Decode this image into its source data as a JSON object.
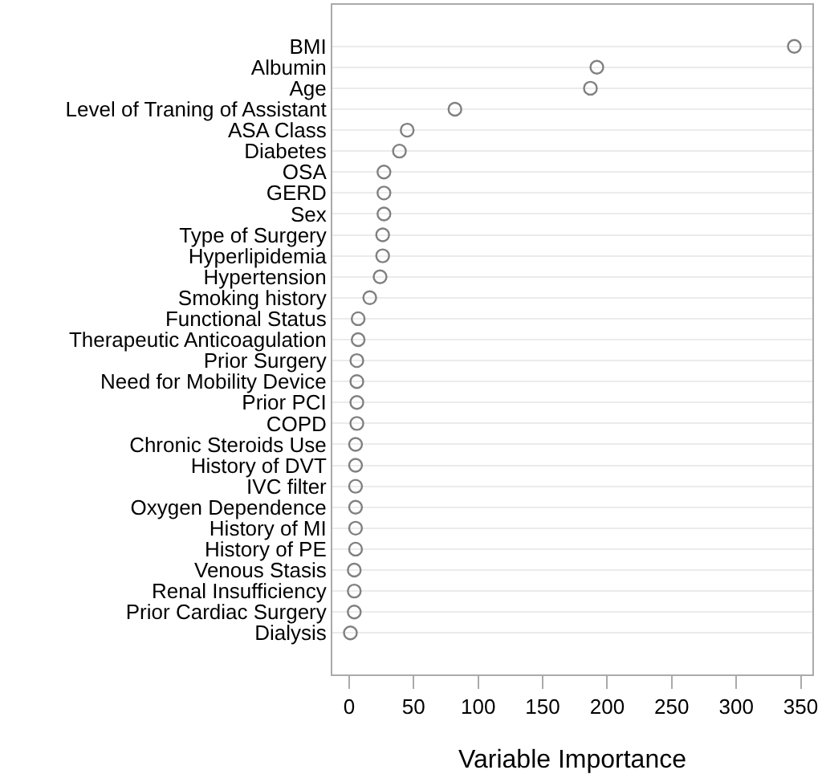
{
  "chart_data": {
    "type": "scatter",
    "xlabel": "Variable Importance",
    "categories": [
      "BMI",
      "Albumin",
      "Age",
      "Level of Traning of Assistant",
      "ASA Class",
      "Diabetes",
      "OSA",
      "GERD",
      "Sex",
      "Type of Surgery",
      "Hyperlipidemia",
      "Hypertension",
      "Smoking history",
      "Functional Status",
      "Therapeutic Anticoagulation",
      "Prior Surgery",
      "Need for Mobility Device",
      "Prior PCI",
      "COPD",
      "Chronic Steroids Use",
      "History of DVT",
      "IVC filter",
      "Oxygen Dependence",
      "History of MI",
      "History of PE",
      "Venous Stasis",
      "Renal Insufficiency",
      "Prior Cardiac Surgery",
      "Dialysis"
    ],
    "values": [
      345,
      192,
      187,
      82,
      45,
      39,
      27,
      27,
      27,
      26,
      26,
      24,
      16,
      7,
      7,
      6,
      6,
      6,
      6,
      5,
      5,
      5,
      5,
      5,
      5,
      4,
      4,
      4,
      1
    ],
    "color": "#808080",
    "marker": "circle",
    "grid": "y",
    "legend": false,
    "orientation": "horizontal",
    "xlim": [
      -13,
      359
    ],
    "xticks": [
      0,
      50,
      100,
      150,
      200,
      250,
      300,
      350
    ]
  }
}
